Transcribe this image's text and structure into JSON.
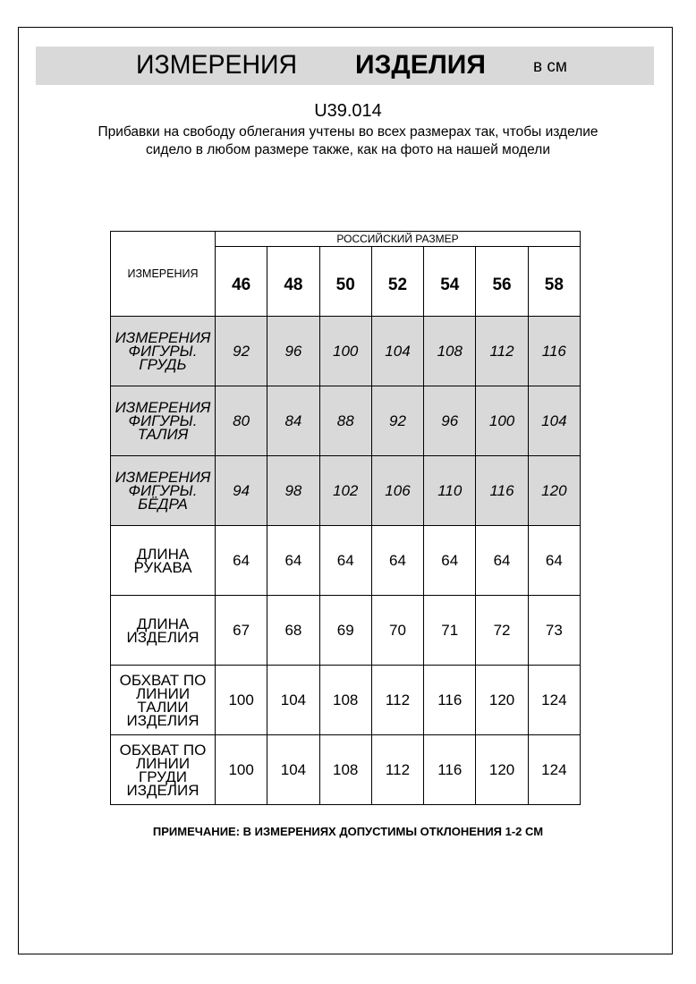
{
  "header": {
    "title_regular": "ИЗМЕРЕНИЯ",
    "title_bold": "ИЗДЕЛИЯ",
    "unit": "в см"
  },
  "product_code": "U39.014",
  "description": "Прибавки на свободу облегания учтены во всех размерах так, чтобы изделие сидело в любом размере также, как на фото на нашей модели",
  "table": {
    "corner_label": "ИЗМЕРЕНИЯ",
    "group_label": "РОССИЙСКИЙ РАЗМЕР",
    "sizes": [
      "46",
      "48",
      "50",
      "52",
      "54",
      "56",
      "58"
    ],
    "rows": [
      {
        "label": "ИЗМЕРЕНИЯ ФИГУРЫ. ГРУДЬ",
        "shaded": true,
        "values": [
          "92",
          "96",
          "100",
          "104",
          "108",
          "112",
          "116"
        ]
      },
      {
        "label": "ИЗМЕРЕНИЯ ФИГУРЫ. ТАЛИЯ",
        "shaded": true,
        "values": [
          "80",
          "84",
          "88",
          "92",
          "96",
          "100",
          "104"
        ]
      },
      {
        "label": "ИЗМЕРЕНИЯ ФИГУРЫ. БЁДРА",
        "shaded": true,
        "values": [
          "94",
          "98",
          "102",
          "106",
          "110",
          "116",
          "120"
        ]
      },
      {
        "label": "ДЛИНА РУКАВА",
        "shaded": false,
        "values": [
          "64",
          "64",
          "64",
          "64",
          "64",
          "64",
          "64"
        ]
      },
      {
        "label": "ДЛИНА ИЗДЕЛИЯ",
        "shaded": false,
        "values": [
          "67",
          "68",
          "69",
          "70",
          "71",
          "72",
          "73"
        ]
      },
      {
        "label": "ОБХВАТ ПО ЛИНИИ ТАЛИИ ИЗДЕЛИЯ",
        "shaded": false,
        "values": [
          "100",
          "104",
          "108",
          "112",
          "116",
          "120",
          "124"
        ]
      },
      {
        "label": "ОБХВАТ ПО ЛИНИИ ГРУДИ ИЗДЕЛИЯ",
        "shaded": false,
        "values": [
          "100",
          "104",
          "108",
          "112",
          "116",
          "120",
          "124"
        ]
      }
    ]
  },
  "note": "ПРИМЕЧАНИЕ: В ИЗМЕРЕНИЯХ ДОПУСТИМЫ ОТКЛОНЕНИЯ 1-2 СМ",
  "colors": {
    "shade": "#d9d9d9"
  }
}
